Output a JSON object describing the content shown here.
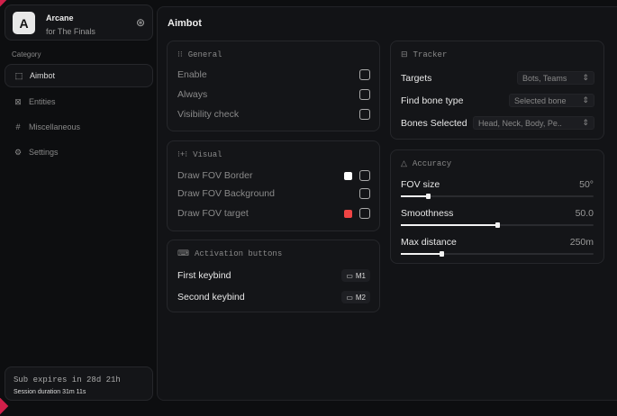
{
  "brand": {
    "logo_letter": "A",
    "name": "Arcane",
    "subtitle": "for The Finals"
  },
  "sidebar": {
    "category_label": "Category",
    "items": [
      {
        "label": "Aimbot",
        "icon": "crosshair-icon",
        "active": true
      },
      {
        "label": "Entities",
        "icon": "scan-user-icon"
      },
      {
        "label": "Miscellaneous",
        "icon": "grid-icon"
      },
      {
        "label": "Settings",
        "icon": "gear-icon"
      }
    ]
  },
  "subscription": {
    "expires": "Sub expires in 28d 21h",
    "session": "Session duration 31m 11s"
  },
  "page": {
    "title": "Aimbot"
  },
  "general": {
    "title": "General",
    "items": [
      {
        "label": "Enable",
        "checked": false
      },
      {
        "label": "Always",
        "checked": false
      },
      {
        "label": "Visibility check",
        "checked": false
      }
    ]
  },
  "visual": {
    "title": "Visual",
    "items": [
      {
        "label": "Draw FOV Border",
        "color": "#ffffff",
        "checked": false
      },
      {
        "label": "Draw FOV Background",
        "checked": false
      },
      {
        "label": "Draw FOV target",
        "color": "#ef4444",
        "checked": false
      }
    ]
  },
  "activation": {
    "title": "Activation buttons",
    "items": [
      {
        "label": "First keybind",
        "key": "M1"
      },
      {
        "label": "Second keybind",
        "key": "M2"
      }
    ]
  },
  "tracker": {
    "title": "Tracker",
    "items": [
      {
        "label": "Targets",
        "value": "Bots, Teams"
      },
      {
        "label": "Find bone type",
        "value": "Selected bone"
      },
      {
        "label": "Bones Selected",
        "value": "Head, Neck, Body, Pe.."
      }
    ]
  },
  "accuracy": {
    "title": "Accuracy",
    "sliders": [
      {
        "label": "FOV size",
        "value": "50°",
        "fraction": 0.14
      },
      {
        "label": "Smoothness",
        "value": "50.0",
        "fraction": 0.5
      },
      {
        "label": "Max distance",
        "value": "250m",
        "fraction": 0.21
      }
    ]
  }
}
